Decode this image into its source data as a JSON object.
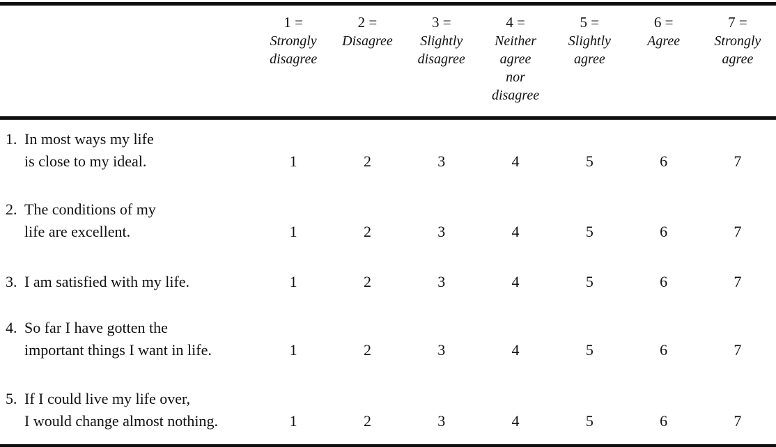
{
  "scale": {
    "header_columns": [
      {
        "value": "1 =",
        "label": "Strongly\ndisagree"
      },
      {
        "value": "2 =",
        "label": "Disagree"
      },
      {
        "value": "3 =",
        "label": "Slightly\ndisagree"
      },
      {
        "value": "4 =",
        "label": "Neither\nagree\nnor\ndisagree"
      },
      {
        "value": "5 =",
        "label": "Slightly\nagree"
      },
      {
        "value": "6 =",
        "label": "Agree"
      },
      {
        "value": "7 =",
        "label": "Strongly\nagree"
      }
    ],
    "items": [
      {
        "number": "1.",
        "text": "In most ways my life\nis close to my ideal.",
        "ratings": [
          "1",
          "2",
          "3",
          "4",
          "5",
          "6",
          "7"
        ]
      },
      {
        "number": "2.",
        "text": "The conditions of my\nlife are excellent.",
        "ratings": [
          "1",
          "2",
          "3",
          "4",
          "5",
          "6",
          "7"
        ]
      },
      {
        "number": "3.",
        "text": "I am satisfied with my life.",
        "ratings": [
          "1",
          "2",
          "3",
          "4",
          "5",
          "6",
          "7"
        ]
      },
      {
        "number": "4.",
        "text": "So far I have gotten the\nimportant things I want in life.",
        "ratings": [
          "1",
          "2",
          "3",
          "4",
          "5",
          "6",
          "7"
        ]
      },
      {
        "number": "5.",
        "text": "If I could live my life over,\nI would change almost nothing.",
        "ratings": [
          "1",
          "2",
          "3",
          "4",
          "5",
          "6",
          "7"
        ]
      }
    ],
    "colors": {
      "text": "#111111",
      "rule": "#0e0e0e",
      "background": "#ffffff"
    }
  }
}
